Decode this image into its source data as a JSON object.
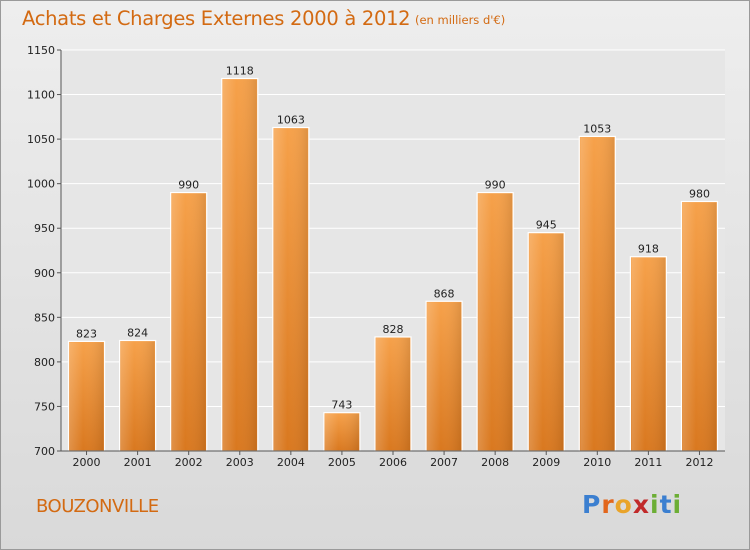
{
  "title": "Achats et Charges Externes 2000 à 2012",
  "subtitle": "(en milliers d'€)",
  "location": "BOUZONVILLE",
  "logo": {
    "letters": [
      "P",
      "r",
      "o",
      "x",
      "i",
      "t",
      "i"
    ]
  },
  "colors": {
    "bar": "#f0902e",
    "text_accent": "#d36a12"
  },
  "chart_data": {
    "type": "bar",
    "title": "Achats et Charges Externes 2000 à 2012",
    "subtitle": "(en milliers d'€)",
    "categories": [
      "2000",
      "2001",
      "2002",
      "2003",
      "2004",
      "2005",
      "2006",
      "2007",
      "2008",
      "2009",
      "2010",
      "2011",
      "2012"
    ],
    "values": [
      823,
      824,
      990,
      1118,
      1063,
      743,
      828,
      868,
      990,
      945,
      1053,
      918,
      980
    ],
    "xlabel": "",
    "ylabel": "",
    "ylim": [
      700,
      1150
    ],
    "yticks": [
      700,
      750,
      800,
      850,
      900,
      950,
      1000,
      1050,
      1100,
      1150
    ],
    "grid": true,
    "legend": "none"
  }
}
